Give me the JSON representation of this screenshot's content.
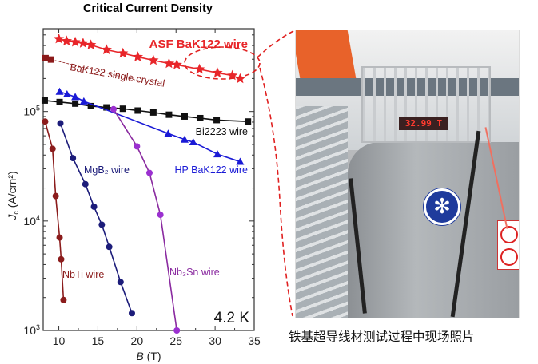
{
  "chart_data": {
    "type": "scatter",
    "title": "Critical Current Density",
    "xlabel": "B (T)",
    "xlabel_italic": "B",
    "xlabel_unit": " (T)",
    "ylabel": "Jc (A/cm²)",
    "ylabel_italic": "J",
    "ylabel_sub": "c",
    "ylabel_unit": " (A/cm²)",
    "xlim": [
      8,
      35
    ],
    "ylim": [
      1000,
      570000
    ],
    "yscale": "log",
    "xticks": [
      10,
      15,
      20,
      25,
      30,
      35
    ],
    "yticks": [
      {
        "value": 1000,
        "base": "10",
        "exp": "3"
      },
      {
        "value": 10000,
        "base": "10",
        "exp": "4"
      },
      {
        "value": 100000,
        "base": "10",
        "exp": "5"
      }
    ],
    "annotation": "4.2 K",
    "series": [
      {
        "name": "ASF BaK122 wire",
        "color": "#e8262a",
        "marker": "star",
        "x": [
          10.0,
          11.0,
          12.1,
          13.1,
          14.1,
          16.1,
          18.2,
          20.1,
          22.1,
          24.1,
          25.1,
          28.0,
          30.3,
          32.2,
          33.2
        ],
        "y": [
          460000,
          440000,
          430000,
          420000,
          405000,
          366000,
          340000,
          315000,
          293000,
          274000,
          267000,
          243000,
          225000,
          213000,
          199000
        ]
      },
      {
        "name": "BaK122 single crystal",
        "color": "#8b1a1a",
        "marker": "square",
        "trend_dashed": {
          "x": [
            9.0,
            20.3
          ],
          "y": [
            298000,
            190000
          ]
        },
        "x": [
          8.3,
          9.0
        ],
        "y": [
          307000,
          298000
        ]
      },
      {
        "name": "Bi2223 wire",
        "color": "#111111",
        "marker": "square",
        "x": [
          8.2,
          10.1,
          12.1,
          14.1,
          16.1,
          18.2,
          20.1,
          22.1,
          24.1,
          26.1,
          28.1,
          30.2,
          34.2
        ],
        "y": [
          126000,
          122000,
          118000,
          112000,
          109000,
          106000,
          102000,
          98000,
          93500,
          90000,
          87000,
          83500,
          81000
        ]
      },
      {
        "name": "HP BaK122 wire",
        "color": "#1a1ad6",
        "marker": "triangle",
        "x": [
          10.1,
          11.05,
          12.1,
          13.2,
          24.0,
          26.1,
          27.2,
          30.3,
          33.2
        ],
        "y": [
          152000,
          144000,
          136000,
          124000,
          63000,
          55500,
          52500,
          40800,
          34800
        ]
      },
      {
        "name": "MgB₂ wire",
        "color": "#1c1c7a",
        "marker": "circle",
        "x": [
          10.2,
          11.8,
          13.4,
          14.5,
          15.5,
          16.45,
          17.9,
          19.35
        ],
        "y": [
          78000,
          37500,
          21700,
          13500,
          9250,
          5800,
          2770,
          1440
        ]
      },
      {
        "name": "Nb₃Sn wire",
        "color": "#8a2aa0",
        "marker_color": "#9b30d0",
        "marker": "circle",
        "x": [
          17.0,
          20.0,
          21.6,
          23.0,
          25.1
        ],
        "y": [
          105000,
          48000,
          27500,
          11400,
          1000
        ]
      },
      {
        "name": "NbTi wire",
        "color": "#8b1c1c",
        "marker": "circle",
        "x": [
          8.25,
          9.2,
          9.6,
          10.1,
          10.3,
          10.6
        ],
        "y": [
          81000,
          45600,
          16900,
          7060,
          4470,
          1900
        ]
      }
    ]
  },
  "photo": {
    "display_reading": "32.99 T",
    "caption": "铁基超导线材测试过程中现场照片"
  },
  "colors": {
    "highlight": "#e02020"
  }
}
